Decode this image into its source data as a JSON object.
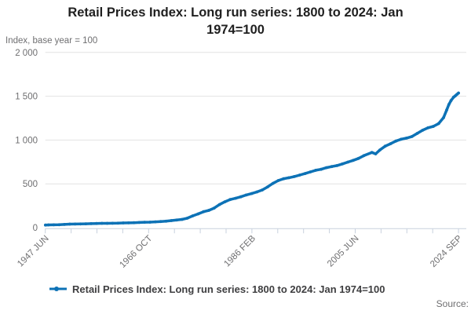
{
  "header": {
    "title_line1": "Retail Prices Index: Long run series: 1800 to 2024: Jan",
    "title_line2": "1974=100",
    "subtitle": "Index, base year = 100"
  },
  "legend": {
    "marker_icon": "line-with-dot-marker",
    "label": "Retail Prices Index: Long run series: 1800 to 2024: Jan 1974=100"
  },
  "footer": {
    "source_label": "Source:"
  },
  "colors": {
    "series_line": "#0d72b6",
    "gridline": "#e2e2e2",
    "axis_line": "#c8d1de",
    "tick_label": "#6f6f71",
    "title_text": "#202020",
    "legend_text": "#3e3e40"
  },
  "chart_data": {
    "type": "line",
    "title": "Retail Prices Index: Long run series: 1800 to 2024: Jan 1974=100",
    "ylabel": "Index, base year = 100",
    "xlabel": "",
    "grid": true,
    "legend_position": "bottom",
    "xlim": [
      1947.42,
      2024.71
    ],
    "ylim": [
      0,
      2000
    ],
    "yticks": [
      {
        "value": 0,
        "label": "0"
      },
      {
        "value": 500,
        "label": "500"
      },
      {
        "value": 1000,
        "label": "1 000"
      },
      {
        "value": 1500,
        "label": "1 500"
      },
      {
        "value": 2000,
        "label": "2 000"
      }
    ],
    "xtick_count": 17,
    "xtick_labels": [
      {
        "index": 0,
        "label": "1947 JUN"
      },
      {
        "index": 4,
        "label": "1966 OCT"
      },
      {
        "index": 8,
        "label": "1986 FEB"
      },
      {
        "index": 12,
        "label": "2005 JUN"
      },
      {
        "index": 16,
        "label": "2024 SEP"
      }
    ],
    "series": [
      {
        "name": "Retail Prices Index: Long run series: 1800 to 2024: Jan 1974=100",
        "points": [
          [
            1947.45,
            30
          ],
          [
            1948,
            31.7
          ],
          [
            1949,
            32.6
          ],
          [
            1950,
            33.6
          ],
          [
            1951,
            36.6
          ],
          [
            1952,
            39.9
          ],
          [
            1953,
            41.1
          ],
          [
            1954,
            41.8
          ],
          [
            1955,
            43.7
          ],
          [
            1956,
            45.8
          ],
          [
            1957,
            47.5
          ],
          [
            1958,
            49
          ],
          [
            1959,
            49.3
          ],
          [
            1960,
            49.8
          ],
          [
            1961,
            51.5
          ],
          [
            1962,
            53.6
          ],
          [
            1963,
            54.7
          ],
          [
            1964,
            56.5
          ],
          [
            1965,
            59.2
          ],
          [
            1966,
            61.5
          ],
          [
            1967,
            63
          ],
          [
            1968,
            66
          ],
          [
            1969,
            69.5
          ],
          [
            1970,
            73.9
          ],
          [
            1971,
            81
          ],
          [
            1972,
            86.8
          ],
          [
            1973,
            94.5
          ],
          [
            1974,
            108.5
          ],
          [
            1975,
            134.8
          ],
          [
            1976,
            157.1
          ],
          [
            1977,
            182
          ],
          [
            1978,
            197.1
          ],
          [
            1979,
            223.5
          ],
          [
            1980,
            263.7
          ],
          [
            1981,
            295
          ],
          [
            1982,
            320.4
          ],
          [
            1983,
            335.1
          ],
          [
            1984,
            351.8
          ],
          [
            1985,
            373.2
          ],
          [
            1986,
            389
          ],
          [
            1987,
            408
          ],
          [
            1988,
            430
          ],
          [
            1989,
            465
          ],
          [
            1990,
            505
          ],
          [
            1991,
            538
          ],
          [
            1992,
            558
          ],
          [
            1993,
            570
          ],
          [
            1994,
            583
          ],
          [
            1995,
            600
          ],
          [
            1996,
            617
          ],
          [
            1997,
            636
          ],
          [
            1998,
            655
          ],
          [
            1999,
            666
          ],
          [
            2000,
            685
          ],
          [
            2001,
            697
          ],
          [
            2002,
            709
          ],
          [
            2003,
            728
          ],
          [
            2004,
            748
          ],
          [
            2005,
            768
          ],
          [
            2006,
            790
          ],
          [
            2007,
            822
          ],
          [
            2008.5,
            858
          ],
          [
            2009.2,
            842
          ],
          [
            2010,
            886
          ],
          [
            2011,
            930
          ],
          [
            2012,
            958
          ],
          [
            2013,
            988
          ],
          [
            2014,
            1010
          ],
          [
            2015,
            1022
          ],
          [
            2016,
            1040
          ],
          [
            2017,
            1076
          ],
          [
            2018,
            1112
          ],
          [
            2019,
            1140
          ],
          [
            2020,
            1156
          ],
          [
            2021,
            1188
          ],
          [
            2021.9,
            1255
          ],
          [
            2022.5,
            1342
          ],
          [
            2022.9,
            1406
          ],
          [
            2023.3,
            1450
          ],
          [
            2023.8,
            1490
          ],
          [
            2024.1,
            1504
          ],
          [
            2024.4,
            1521
          ],
          [
            2024.71,
            1537
          ]
        ]
      }
    ]
  }
}
